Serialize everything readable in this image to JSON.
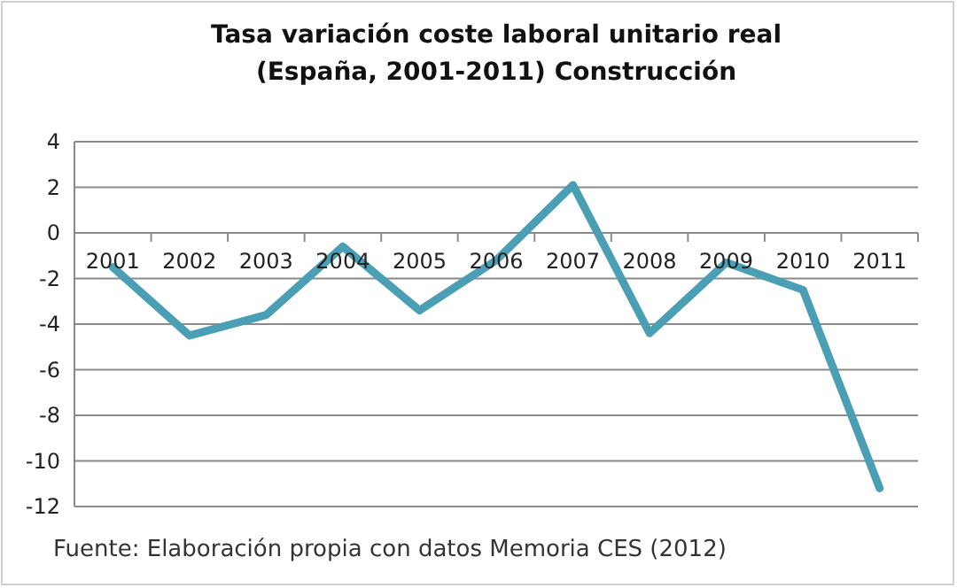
{
  "chart_data": {
    "type": "line",
    "title": "Tasa variación coste laboral unitario real\n(España, 2001-2011) Construcción",
    "categories": [
      "2001",
      "2002",
      "2003",
      "2004",
      "2005",
      "2006",
      "2007",
      "2008",
      "2009",
      "2010",
      "2011"
    ],
    "series": [
      {
        "color": "#4b9fb5",
        "values": [
          -1.5,
          -4.5,
          -3.6,
          -0.6,
          -3.4,
          -1.2,
          2.1,
          -4.4,
          -1.3,
          -2.5,
          -11.2
        ]
      }
    ],
    "ylim": [
      -12,
      4
    ],
    "yticks": [
      -12,
      -10,
      -8,
      -6,
      -4,
      -2,
      0,
      2,
      4
    ],
    "grid": "y",
    "marker": "none",
    "line_style": "solid",
    "annotations": [
      "Fuente: Elaboración propia con datos Memoria CES (2012)"
    ]
  }
}
